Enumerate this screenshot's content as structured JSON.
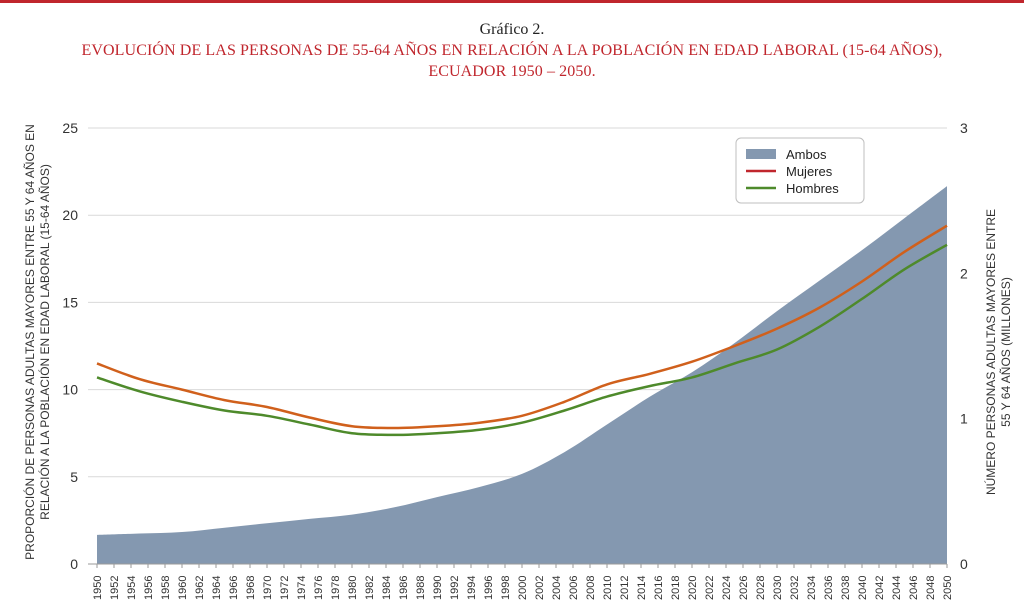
{
  "header": {
    "label": "Gráfico 2.",
    "title_line1": "EVOLUCIÓN DE LAS PERSONAS DE 55-64 AÑOS EN RELACIÓN A LA POBLACIÓN EN EDAD LABORAL (15-64 AÑOS),",
    "title_line2": "ECUADOR 1950 – 2050."
  },
  "colors": {
    "accent": "#c0262d",
    "ambos": "#8498b0",
    "mujeres": "#d0601c",
    "hombres": "#4e8a2b",
    "grid": "#d9d9d9"
  },
  "chart_data": {
    "type": "area",
    "title": "EVOLUCIÓN DE LAS PERSONAS DE 55-64 AÑOS EN RELACIÓN A LA POBLACIÓN EN EDAD LABORAL (15-64 AÑOS), ECUADOR 1950 – 2050.",
    "ylabel_left_line1": "PROPORCIÓN DE PERSONAS ADULTAS MAYORES ENTRE 55 Y 64 AÑOS EN",
    "ylabel_left_line2": "RELACIÓN A LA POBLACIÓN EN EDAD LABORAL (15-64 AÑOS)",
    "ylabel_right_line1": "NÚMERO PERSONAS ADULTAS MAYORES ENTRE",
    "ylabel_right_line2": "55 Y 64 AÑOS (MILLONES)",
    "ylim_left": [
      0,
      25
    ],
    "ylim_right": [
      0,
      3
    ],
    "yticks_left": [
      "0",
      "5",
      "10",
      "15",
      "20",
      "25"
    ],
    "yticks_right": [
      "0",
      "1",
      "2",
      "3"
    ],
    "grid": true,
    "legend_position": "top-right",
    "x": [
      1950,
      1955,
      1960,
      1965,
      1970,
      1975,
      1980,
      1985,
      1990,
      1995,
      2000,
      2005,
      2010,
      2015,
      2020,
      2025,
      2030,
      2035,
      2040,
      2045,
      2050
    ],
    "series": [
      {
        "name": "Ambos",
        "kind": "area",
        "axis": "right",
        "values": [
          0.2,
          0.21,
          0.22,
          0.25,
          0.28,
          0.31,
          0.34,
          0.39,
          0.46,
          0.53,
          0.62,
          0.77,
          0.96,
          1.15,
          1.32,
          1.52,
          1.74,
          1.95,
          2.16,
          2.38,
          2.6
        ]
      },
      {
        "name": "Mujeres",
        "kind": "line",
        "axis": "left",
        "values": [
          11.5,
          10.6,
          10.0,
          9.4,
          9.0,
          8.4,
          7.9,
          7.8,
          7.9,
          8.1,
          8.5,
          9.3,
          10.3,
          10.9,
          11.6,
          12.5,
          13.5,
          14.7,
          16.2,
          17.9,
          19.4
        ]
      },
      {
        "name": "Hombres",
        "kind": "line",
        "axis": "left",
        "values": [
          10.7,
          9.9,
          9.3,
          8.8,
          8.5,
          8.0,
          7.5,
          7.4,
          7.5,
          7.7,
          8.1,
          8.8,
          9.6,
          10.2,
          10.7,
          11.5,
          12.3,
          13.6,
          15.2,
          16.9,
          18.3
        ]
      }
    ],
    "xtick_labels": [
      "1950",
      "1952",
      "1954",
      "1956",
      "1958",
      "1960",
      "1962",
      "1964",
      "1966",
      "1968",
      "1970",
      "1972",
      "1974",
      "1976",
      "1978",
      "1980",
      "1982",
      "1984",
      "1986",
      "1988",
      "1990",
      "1992",
      "1994",
      "1996",
      "1998",
      "2000",
      "2002",
      "2004",
      "2006",
      "2008",
      "2010",
      "2012",
      "2014",
      "2016",
      "2018",
      "2020",
      "2022",
      "2024",
      "2026",
      "2028",
      "2030",
      "2032",
      "2034",
      "2036",
      "2038",
      "2040",
      "2042",
      "2044",
      "2046",
      "2048",
      "2050"
    ]
  }
}
